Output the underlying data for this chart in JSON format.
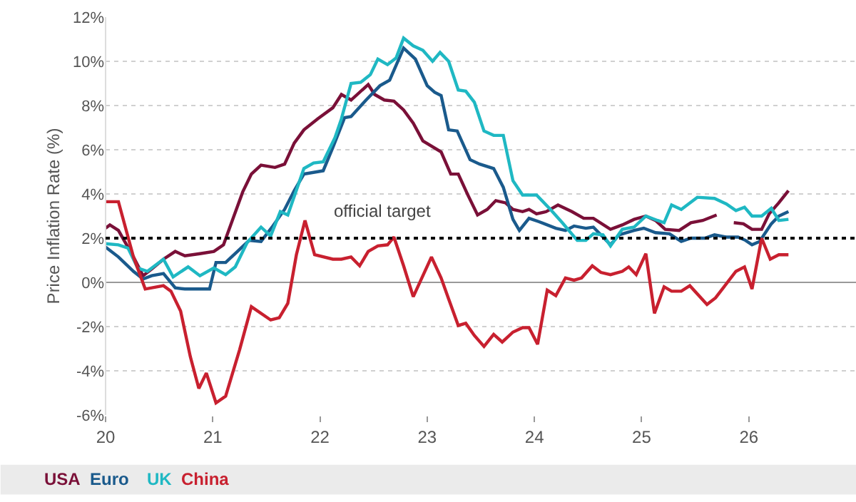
{
  "chart_data": {
    "type": "line",
    "ylabel": "Price Inflation Rate (%)",
    "xlim": [
      20,
      27
    ],
    "ylim": [
      -6,
      12
    ],
    "xticks": [
      20,
      21,
      22,
      23,
      24,
      25,
      26
    ],
    "yticks": [
      {
        "value": -6,
        "label": "-6%"
      },
      {
        "value": -4,
        "label": "-4%"
      },
      {
        "value": -2,
        "label": "-2%"
      },
      {
        "value": 0,
        "label": "0%"
      },
      {
        "value": 2,
        "label": "2%"
      },
      {
        "value": 4,
        "label": "4%"
      },
      {
        "value": 6,
        "label": "6%"
      },
      {
        "value": 8,
        "label": "8%"
      },
      {
        "value": 10,
        "label": "10%"
      },
      {
        "value": 12,
        "label": "12%"
      }
    ],
    "grid": "y",
    "legend": "bottom",
    "line_style": "solid",
    "marker": "none",
    "ref_lines": [
      {
        "axis": "y",
        "value": 2,
        "label": "official target",
        "color": "#000000",
        "line_style": "dotted"
      }
    ],
    "series": [
      {
        "name": "USA",
        "color": "#7a1038",
        "x": [
          20.0,
          20.04,
          20.12,
          20.26,
          20.35,
          20.43,
          20.54,
          20.65,
          20.74,
          20.88,
          21.01,
          21.1,
          21.19,
          21.28,
          21.36,
          21.45,
          21.58,
          21.67,
          21.76,
          21.85,
          21.98,
          22.12,
          22.2,
          22.29,
          22.45,
          22.51,
          22.6,
          22.69,
          22.78,
          22.87,
          22.96,
          23.13,
          23.22,
          23.29,
          23.38,
          23.47,
          23.56,
          23.64,
          23.73,
          23.8,
          23.89,
          23.95,
          24.02,
          24.11,
          24.22,
          24.35,
          24.46,
          24.55,
          24.71,
          24.82,
          24.93,
          25.04,
          25.13,
          25.22,
          25.35,
          25.46,
          25.57,
          25.7,
          25.78,
          25.86,
          25.95,
          26.03,
          26.12,
          26.19,
          26.28,
          26.37
        ],
        "values": [
          2.45,
          2.6,
          2.35,
          1.15,
          0.3,
          0.6,
          1.05,
          1.4,
          1.2,
          1.3,
          1.4,
          1.7,
          2.9,
          4.1,
          4.9,
          5.3,
          5.2,
          5.35,
          6.3,
          6.9,
          7.4,
          7.9,
          8.5,
          8.25,
          8.95,
          8.5,
          8.25,
          8.2,
          7.8,
          7.2,
          6.4,
          5.9,
          4.9,
          4.9,
          3.95,
          3.05,
          3.3,
          3.7,
          3.6,
          3.3,
          3.2,
          3.3,
          3.1,
          3.2,
          3.5,
          3.2,
          2.9,
          2.9,
          2.4,
          2.6,
          2.85,
          3.0,
          2.8,
          2.4,
          2.35,
          2.7,
          2.8,
          3.05,
          null,
          2.7,
          2.65,
          2.4,
          2.4,
          3.1,
          3.6,
          4.15
        ]
      },
      {
        "name": "Euro",
        "color": "#1a5a8c",
        "x": [
          20.0,
          20.12,
          20.26,
          20.35,
          20.43,
          20.54,
          20.65,
          20.74,
          20.97,
          21.03,
          21.12,
          21.23,
          21.34,
          21.45,
          21.56,
          21.67,
          21.76,
          21.85,
          22.03,
          22.12,
          22.23,
          22.29,
          22.43,
          22.56,
          22.65,
          22.78,
          22.89,
          23.0,
          23.07,
          23.13,
          23.2,
          23.28,
          23.4,
          23.49,
          23.62,
          23.71,
          23.8,
          23.86,
          23.95,
          24.04,
          24.2,
          24.29,
          24.37,
          24.48,
          24.55,
          24.71,
          24.79,
          24.93,
          25.02,
          25.13,
          25.26,
          25.37,
          25.46,
          25.59,
          25.68,
          25.79,
          25.9,
          25.97,
          26.03,
          26.1,
          26.21,
          26.28,
          26.37
        ],
        "values": [
          1.6,
          1.15,
          0.5,
          0.15,
          0.3,
          0.4,
          -0.25,
          -0.3,
          -0.3,
          0.9,
          0.9,
          1.4,
          1.9,
          1.85,
          2.55,
          3.3,
          4.15,
          4.9,
          5.05,
          6.1,
          7.45,
          7.5,
          8.25,
          8.9,
          9.15,
          10.6,
          10.1,
          8.9,
          8.6,
          8.45,
          6.9,
          6.85,
          5.55,
          5.35,
          5.15,
          4.3,
          2.85,
          2.35,
          2.9,
          2.75,
          2.45,
          2.35,
          2.55,
          2.45,
          2.5,
          1.7,
          2.15,
          2.35,
          2.45,
          2.25,
          2.2,
          1.85,
          2.0,
          2.0,
          2.15,
          2.05,
          2.05,
          1.9,
          1.7,
          1.85,
          2.65,
          3.0,
          3.2
        ]
      },
      {
        "name": "UK",
        "color": "#1fb8c3",
        "x": [
          20.0,
          20.12,
          20.21,
          20.3,
          20.39,
          20.54,
          20.63,
          20.77,
          20.88,
          21.01,
          21.12,
          21.21,
          21.32,
          21.45,
          21.54,
          21.63,
          21.7,
          21.85,
          21.94,
          22.03,
          22.14,
          22.2,
          22.29,
          22.38,
          22.47,
          22.54,
          22.63,
          22.71,
          22.78,
          22.87,
          22.96,
          23.05,
          23.12,
          23.2,
          23.29,
          23.36,
          23.44,
          23.53,
          23.62,
          23.71,
          23.8,
          23.89,
          24.02,
          24.15,
          24.26,
          24.4,
          24.48,
          24.55,
          24.64,
          24.71,
          24.82,
          24.93,
          25.04,
          25.15,
          25.21,
          25.28,
          25.37,
          25.52,
          25.68,
          25.79,
          25.88,
          25.96,
          26.03,
          26.12,
          26.21,
          26.28,
          26.37
        ],
        "values": [
          1.75,
          1.7,
          1.55,
          0.65,
          0.5,
          1.05,
          0.25,
          0.7,
          0.3,
          0.65,
          0.35,
          0.7,
          1.8,
          2.5,
          2.1,
          3.2,
          3.05,
          5.15,
          5.4,
          5.45,
          6.55,
          7.4,
          9.0,
          9.05,
          9.4,
          10.1,
          9.85,
          10.15,
          11.05,
          10.7,
          10.5,
          10.0,
          10.4,
          10.0,
          8.7,
          8.65,
          8.15,
          6.85,
          6.65,
          6.65,
          4.6,
          3.95,
          3.95,
          3.3,
          2.7,
          1.9,
          1.9,
          2.2,
          2.15,
          1.65,
          2.4,
          2.5,
          3.0,
          2.8,
          2.7,
          3.5,
          3.3,
          3.85,
          3.8,
          3.55,
          3.25,
          3.4,
          3.0,
          3.0,
          3.35,
          2.8,
          2.85
        ]
      },
      {
        "name": "China",
        "color": "#c8202f",
        "x": [
          20.0,
          20.12,
          20.26,
          20.37,
          20.54,
          20.61,
          20.7,
          20.79,
          20.87,
          20.94,
          21.03,
          21.12,
          21.25,
          21.36,
          21.54,
          21.62,
          21.7,
          21.78,
          21.86,
          21.95,
          22.12,
          22.2,
          22.29,
          22.37,
          22.45,
          22.54,
          22.63,
          22.69,
          22.78,
          22.87,
          23.04,
          23.13,
          23.2,
          23.29,
          23.36,
          23.44,
          23.53,
          23.62,
          23.7,
          23.8,
          23.89,
          23.95,
          24.03,
          24.12,
          24.2,
          24.29,
          24.37,
          24.44,
          24.54,
          24.62,
          24.71,
          24.82,
          24.88,
          24.95,
          25.04,
          25.12,
          25.21,
          25.28,
          25.37,
          25.45,
          25.61,
          25.69,
          25.88,
          25.96,
          26.03,
          26.12,
          26.2,
          26.28,
          26.37
        ],
        "values": [
          3.65,
          3.65,
          1.15,
          -0.3,
          -0.15,
          -0.4,
          -1.3,
          -3.35,
          -4.8,
          -4.1,
          -5.45,
          -5.15,
          -3.05,
          -1.1,
          -1.7,
          -1.6,
          -0.95,
          1.25,
          2.8,
          1.25,
          1.05,
          1.05,
          1.15,
          0.75,
          1.4,
          1.65,
          1.7,
          2.05,
          0.75,
          -0.65,
          1.15,
          0.2,
          -0.75,
          -1.95,
          -1.85,
          -2.4,
          -2.9,
          -2.35,
          -2.7,
          -2.25,
          -2.05,
          -2.05,
          -2.8,
          -0.35,
          -0.6,
          0.2,
          0.1,
          0.2,
          0.75,
          0.45,
          0.35,
          0.5,
          0.7,
          0.35,
          1.3,
          -1.4,
          -0.2,
          -0.4,
          -0.4,
          -0.15,
          -1.0,
          -0.7,
          0.5,
          0.7,
          -0.3,
          2.0,
          1.05,
          1.25,
          1.25
        ]
      }
    ]
  }
}
